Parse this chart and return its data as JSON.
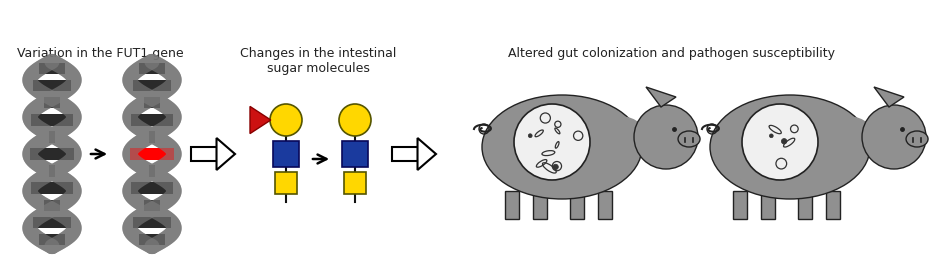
{
  "bg_color": "#ffffff",
  "label1": "Variation in the FUT1 gene",
  "label2": "Changes in the intestinal\nsugar molecules",
  "label3": "Altered gut colonization and pathogen susceptibility",
  "dna_body_color": "#808080",
  "dna_strand_color": "#2a2a2a",
  "dna_highlight_color": "#ff0000",
  "sugar_yellow": "#FFD700",
  "sugar_blue": "#1a3a9e",
  "sugar_red": "#CC1111",
  "pig_body_color": "#909090",
  "pig_circle_color": "#f0f0f0",
  "arrow_fill": "#ffffff",
  "arrow_edge": "#000000",
  "label_color": "#222222",
  "label_fontsize": 9.0,
  "fig_w": 9.51,
  "fig_h": 2.62,
  "dpi": 100
}
